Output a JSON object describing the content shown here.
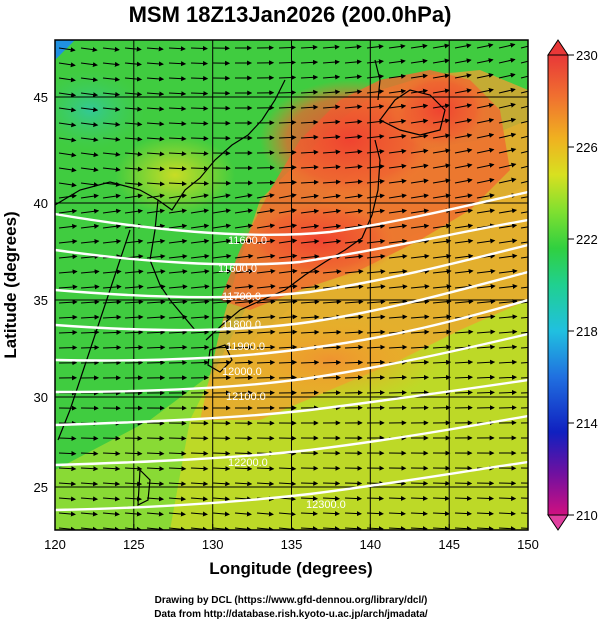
{
  "title": "MSM 18Z13Jan2026 (200.0hPa)",
  "xlabel": "Longitude (degrees)",
  "ylabel": "Latitude  (degrees)",
  "x_ticks": [
    "120",
    "125",
    "130",
    "135",
    "140",
    "145",
    "150"
  ],
  "y_ticks": [
    "25",
    "30",
    "35",
    "40",
    "45"
  ],
  "colorbar": {
    "ticks": [
      "230",
      "226",
      "222",
      "218",
      "214",
      "210"
    ],
    "colors": [
      "#d01080",
      "#7010a0",
      "#1020c0",
      "#2070e0",
      "#20c0e0",
      "#20d090",
      "#30d040",
      "#80e030",
      "#d8e020",
      "#f0b020",
      "#f07030",
      "#e83838"
    ]
  },
  "contour_labels": [
    "11600.0",
    "11600.0",
    "11700.0",
    "11800.0",
    "11900.0",
    "12000.0",
    "12100.0",
    "12200.0",
    "12300.0"
  ],
  "credits": [
    "Drawing by DCL (https://www.gfd-dennou.org/library/dcl/)",
    "Data from http://database.rish.kyoto-u.ac.jp/arch/jmadata/"
  ],
  "chart_data": {
    "type": "heatmap",
    "title": "MSM 18Z13Jan2026 (200.0hPa)",
    "xlabel": "Longitude (degrees)",
    "ylabel": "Latitude  (degrees)",
    "xlim": [
      120,
      150
    ],
    "ylim": [
      22.4,
      47.6
    ],
    "color_range": [
      210,
      230
    ],
    "contour_field": "geopotential height",
    "contour_levels": [
      11600,
      11700,
      11800,
      11900,
      12000,
      12100,
      12200,
      12300
    ],
    "contour_lat_at_135E": [
      37.8,
      35.9,
      34.4,
      32.9,
      31.5,
      29.9,
      27.4,
      25.2
    ],
    "wind": "westerly wind vectors over the whole domain",
    "grid": true
  }
}
